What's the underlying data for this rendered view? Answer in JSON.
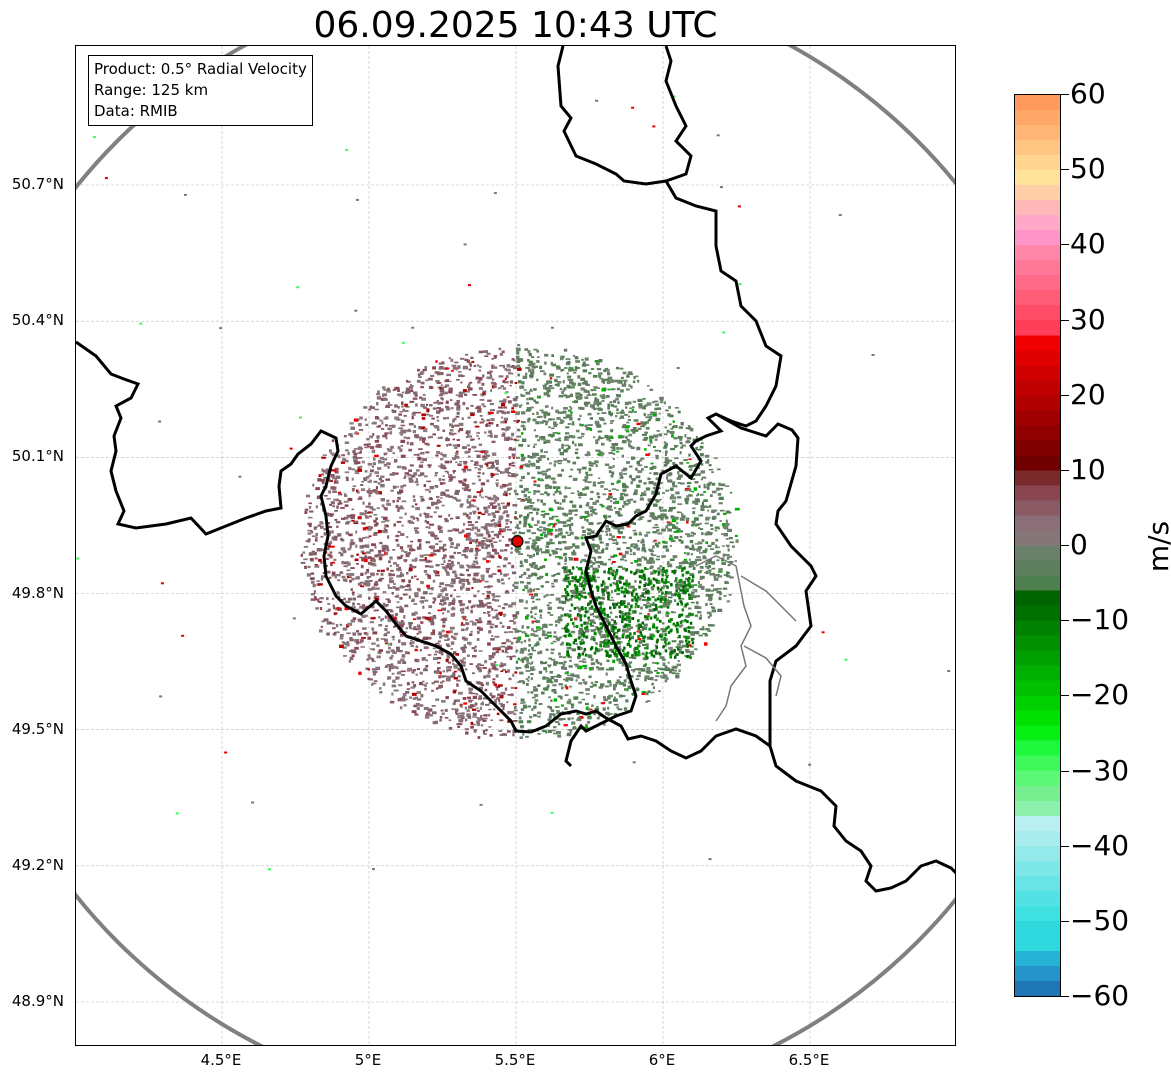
{
  "title": "06.09.2025 10:43 UTC",
  "info": {
    "product": "Product: 0.5° Radial Velocity",
    "range": "Range: 125 km",
    "data": "Data: RMIB"
  },
  "map": {
    "lon_range": [
      4.0,
      7.0
    ],
    "lat_range": [
      48.8,
      50.98
    ],
    "lon_ticks": [
      {
        "v": 4.5,
        "label": "4.5°E"
      },
      {
        "v": 5.0,
        "label": "5°E"
      },
      {
        "v": 5.5,
        "label": "5.5°E"
      },
      {
        "v": 6.0,
        "label": "6°E"
      },
      {
        "v": 6.5,
        "label": "6.5°E"
      }
    ],
    "lat_ticks": [
      {
        "v": 50.7,
        "label": "50.7°N"
      },
      {
        "v": 50.4,
        "label": "50.4°N"
      },
      {
        "v": 50.1,
        "label": "50.1°N"
      },
      {
        "v": 49.8,
        "label": "49.8°N"
      },
      {
        "v": 49.5,
        "label": "49.5°N"
      },
      {
        "v": 49.2,
        "label": "49.2°N"
      },
      {
        "v": 48.9,
        "label": "48.9°N"
      }
    ],
    "radar_site": {
      "lon": 5.505,
      "lat": 49.915
    },
    "range_km": 125,
    "range_ring_color": "#808080",
    "site_marker_color": "#e00000"
  },
  "colorbar": {
    "label": "m/s",
    "min": -60,
    "max": 60,
    "ticks": [
      {
        "v": 60,
        "label": "60"
      },
      {
        "v": 50,
        "label": "50"
      },
      {
        "v": 40,
        "label": "40"
      },
      {
        "v": 30,
        "label": "30"
      },
      {
        "v": 20,
        "label": "20"
      },
      {
        "v": 10,
        "label": "10"
      },
      {
        "v": 0,
        "label": "0"
      },
      {
        "v": -10,
        "label": "−10"
      },
      {
        "v": -20,
        "label": "−20"
      },
      {
        "v": -30,
        "label": "−30"
      },
      {
        "v": -40,
        "label": "−40"
      },
      {
        "v": -50,
        "label": "−50"
      },
      {
        "v": -60,
        "label": "−60"
      }
    ],
    "bands": [
      {
        "from": -60,
        "to": -58,
        "color": "#1f77b4"
      },
      {
        "from": -58,
        "to": -56,
        "color": "#2393c8"
      },
      {
        "from": -56,
        "to": -54,
        "color": "#27b3d6"
      },
      {
        "from": -54,
        "to": -50,
        "color": "#2fd9de"
      },
      {
        "from": -50,
        "to": -48,
        "color": "#3ee0e0"
      },
      {
        "from": -48,
        "to": -46,
        "color": "#52e2e3"
      },
      {
        "from": -46,
        "to": -44,
        "color": "#68e4e6"
      },
      {
        "from": -44,
        "to": -42,
        "color": "#7ee7e8"
      },
      {
        "from": -42,
        "to": -40,
        "color": "#94e9eb"
      },
      {
        "from": -40,
        "to": -38,
        "color": "#a8ecee"
      },
      {
        "from": -38,
        "to": -36,
        "color": "#baeff1"
      },
      {
        "from": -36,
        "to": -34,
        "color": "#8ef0ad"
      },
      {
        "from": -34,
        "to": -32,
        "color": "#77ee90"
      },
      {
        "from": -32,
        "to": -30,
        "color": "#5df878"
      },
      {
        "from": -30,
        "to": -28,
        "color": "#3ef85a"
      },
      {
        "from": -28,
        "to": -26,
        "color": "#1ef83c"
      },
      {
        "from": -26,
        "to": -24,
        "color": "#05ef12"
      },
      {
        "from": -24,
        "to": -22,
        "color": "#00e000"
      },
      {
        "from": -22,
        "to": -20,
        "color": "#00d000"
      },
      {
        "from": -20,
        "to": -18,
        "color": "#00c000"
      },
      {
        "from": -18,
        "to": -16,
        "color": "#00b000"
      },
      {
        "from": -16,
        "to": -14,
        "color": "#00a000"
      },
      {
        "from": -14,
        "to": -12,
        "color": "#009000"
      },
      {
        "from": -12,
        "to": -10,
        "color": "#008000"
      },
      {
        "from": -10,
        "to": -8,
        "color": "#007000"
      },
      {
        "from": -8,
        "to": -6,
        "color": "#006400"
      },
      {
        "from": -6,
        "to": -4,
        "color": "#4e7f4e"
      },
      {
        "from": -4,
        "to": -2,
        "color": "#5d7f5d"
      },
      {
        "from": -2,
        "to": 0,
        "color": "#6b806b"
      },
      {
        "from": 0,
        "to": 2,
        "color": "#857777"
      },
      {
        "from": 2,
        "to": 4,
        "color": "#8a6e78"
      },
      {
        "from": 4,
        "to": 6,
        "color": "#8a5a64"
      },
      {
        "from": 6,
        "to": 8,
        "color": "#8a4650"
      },
      {
        "from": 8,
        "to": 10,
        "color": "#7a2a2a"
      },
      {
        "from": 10,
        "to": 12,
        "color": "#700000"
      },
      {
        "from": 12,
        "to": 14,
        "color": "#800000"
      },
      {
        "from": 14,
        "to": 16,
        "color": "#900000"
      },
      {
        "from": 16,
        "to": 18,
        "color": "#a00000"
      },
      {
        "from": 18,
        "to": 20,
        "color": "#b00000"
      },
      {
        "from": 20,
        "to": 22,
        "color": "#c00000"
      },
      {
        "from": 22,
        "to": 24,
        "color": "#d00000"
      },
      {
        "from": 24,
        "to": 26,
        "color": "#e00000"
      },
      {
        "from": 26,
        "to": 28,
        "color": "#f00000"
      },
      {
        "from": 28,
        "to": 30,
        "color": "#ff3f5a"
      },
      {
        "from": 30,
        "to": 32,
        "color": "#ff4d68"
      },
      {
        "from": 32,
        "to": 34,
        "color": "#ff5c78"
      },
      {
        "from": 34,
        "to": 36,
        "color": "#ff6a88"
      },
      {
        "from": 36,
        "to": 38,
        "color": "#ff7898"
      },
      {
        "from": 38,
        "to": 40,
        "color": "#ff86a8"
      },
      {
        "from": 40,
        "to": 42,
        "color": "#ff94c8"
      },
      {
        "from": 42,
        "to": 44,
        "color": "#ffa8c8"
      },
      {
        "from": 44,
        "to": 46,
        "color": "#ffb8b8"
      },
      {
        "from": 46,
        "to": 48,
        "color": "#ffd0a8"
      },
      {
        "from": 48,
        "to": 50,
        "color": "#ffe39a"
      },
      {
        "from": 50,
        "to": 52,
        "color": "#ffd590"
      },
      {
        "from": 52,
        "to": 54,
        "color": "#ffc583"
      },
      {
        "from": 54,
        "to": 56,
        "color": "#ffb676"
      },
      {
        "from": 56,
        "to": 58,
        "color": "#ffa869"
      },
      {
        "from": 58,
        "to": 60,
        "color": "#ff9a5c"
      }
    ]
  }
}
